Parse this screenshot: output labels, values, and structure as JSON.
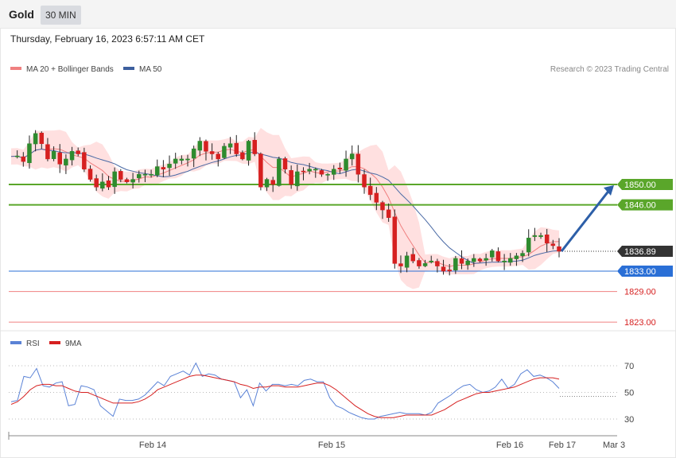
{
  "header": {
    "instrument": "Gold",
    "timeframe": "30 MIN",
    "timestamp": "Thursday, February 16, 2023 6:57:11 AM CET"
  },
  "legend": {
    "ma20_label": "MA 20 + Bollinger Bands",
    "ma50_label": "MA 50",
    "credit": "Research © 2023 Trading Central",
    "rsi_label": "RSI",
    "rsi_ma_label": "9MA"
  },
  "colors": {
    "band_fill": "#ffd6d6",
    "ma20": "#f08080",
    "ma50": "#4a6aa5",
    "candle_up": "#2e8b2e",
    "candle_down": "#d62020",
    "resistance": "#5aa62a",
    "support_blue": "#2a6fd6",
    "support_red": "#f08080",
    "current": "#333333",
    "arrow": "#2d5fa8",
    "rsi": "#5a82d6",
    "rsi_ma": "#d62020"
  },
  "chart_data": [
    {
      "type": "candlestick",
      "title": "Gold",
      "timeframe": "30 MIN",
      "x_ticks": [
        "Feb 14",
        "Feb 15",
        "Feb 16",
        "Feb 17",
        "Mar 3"
      ],
      "y_range": [
        1822,
        1865
      ],
      "grid": false,
      "legend_position": "top-left",
      "series": [
        {
          "name": "MA 20 + Bollinger Bands"
        },
        {
          "name": "MA 50"
        }
      ],
      "price_path": [
        1855.5,
        1855.6,
        1854.5,
        1858.0,
        1860.0,
        1858.0,
        1855.0,
        1856.5,
        1854.0,
        1855.0,
        1856.5,
        1856.0,
        1853.0,
        1851.0,
        1849.5,
        1850.5,
        1849.5,
        1852.5,
        1851.0,
        1850.5,
        1851.0,
        1852.0,
        1852.0,
        1852.0,
        1853.5,
        1853.0,
        1854.0,
        1855.0,
        1855.0,
        1855.0,
        1857.0,
        1858.5,
        1856.5,
        1856.0,
        1855.0,
        1857.5,
        1858.0,
        1856.0,
        1855.0,
        1858.5,
        1856.0,
        1849.5,
        1851.0,
        1850.0,
        1855.0,
        1853.0,
        1850.0,
        1852.5,
        1852.5,
        1853.0,
        1853.0,
        1852.0,
        1852.0,
        1853.0,
        1853.0,
        1855.0,
        1856.0,
        1852.0,
        1849.5,
        1848.0,
        1846.5,
        1845.0,
        1843.5,
        1834.5,
        1834.0,
        1836.0,
        1835.0,
        1834.0,
        1834.5,
        1835.0,
        1834.0,
        1833.0,
        1833.0,
        1835.5,
        1834.5,
        1835.0,
        1835.5,
        1835.0,
        1835.5,
        1837.0,
        1835.0,
        1835.0,
        1835.5,
        1836.0,
        1836.5,
        1839.5,
        1840.0,
        1840.0,
        1838.5,
        1838.0,
        1836.9
      ],
      "levels": [
        {
          "label": "1850.00",
          "value": 1850.0,
          "role": "resistance"
        },
        {
          "label": "1846.00",
          "value": 1846.0,
          "role": "resistance"
        },
        {
          "label": "1836.89",
          "value": 1836.89,
          "role": "current"
        },
        {
          "label": "1833.00",
          "value": 1833.0,
          "role": "pivot"
        },
        {
          "label": "1829.00",
          "value": 1829.0,
          "role": "support"
        },
        {
          "label": "1823.00",
          "value": 1823.0,
          "role": "support"
        }
      ],
      "projection": {
        "from": 1836.89,
        "to": 1850.0
      }
    },
    {
      "type": "line",
      "title": "RSI",
      "y_ticks": [
        "70",
        "50",
        "30"
      ],
      "y_range": [
        10,
        90
      ],
      "series": [
        {
          "name": "RSI",
          "values": [
            43,
            44,
            62,
            61,
            68,
            55,
            54,
            57,
            58,
            40,
            41,
            55,
            54,
            52,
            40,
            36,
            32,
            45,
            44,
            44,
            45,
            48,
            53,
            58,
            55,
            62,
            64,
            66,
            63,
            72,
            62,
            64,
            63,
            60,
            59,
            58,
            46,
            52,
            40,
            57,
            51,
            56,
            56,
            55,
            56,
            55,
            59,
            60,
            58,
            58,
            46,
            40,
            38,
            35,
            33,
            31,
            30,
            30,
            32,
            33,
            34,
            35,
            34,
            34,
            34,
            33,
            35,
            42,
            45,
            48,
            52,
            55,
            56,
            52,
            50,
            51,
            54,
            60,
            53,
            56,
            64,
            67,
            62,
            63,
            61,
            58,
            53
          ]
        },
        {
          "name": "9MA",
          "values": [
            41,
            43,
            47,
            52,
            55,
            56,
            56,
            55,
            55,
            53,
            51,
            50,
            50,
            48,
            46,
            44,
            42,
            42,
            42,
            42,
            43,
            45,
            48,
            52,
            54,
            56,
            58,
            60,
            62,
            63,
            63,
            62,
            61,
            60,
            59,
            58,
            56,
            55,
            53,
            54,
            54,
            55,
            55,
            54,
            54,
            54,
            55,
            56,
            57,
            57,
            55,
            52,
            48,
            44,
            40,
            37,
            34,
            32,
            31,
            31,
            31,
            32,
            33,
            33,
            33,
            33,
            33,
            35,
            37,
            40,
            43,
            45,
            47,
            49,
            50,
            50,
            51,
            52,
            53,
            54,
            56,
            58,
            60,
            61,
            61,
            61,
            60
          ]
        }
      ]
    }
  ]
}
